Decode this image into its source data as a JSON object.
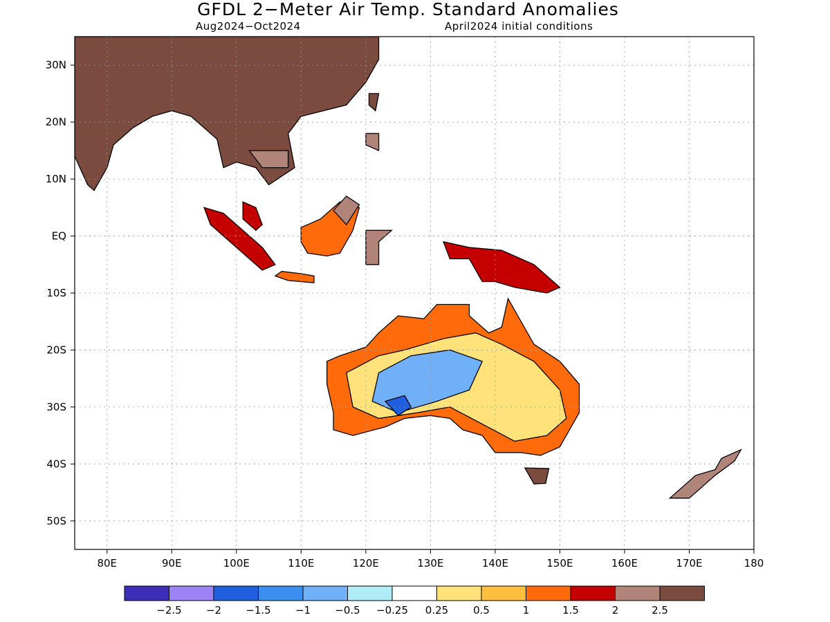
{
  "title": "GFDL 2−Meter Air Temp. Standard Anomalies",
  "subtitle_left": "Aug2024−Oct2024",
  "subtitle_right": "April2024 initial conditions",
  "map": {
    "lon_range": [
      75,
      180
    ],
    "lat_range": [
      -55,
      35
    ],
    "lon_ticks": [
      {
        "value": 80,
        "label": "80E"
      },
      {
        "value": 90,
        "label": "90E"
      },
      {
        "value": 100,
        "label": "100E"
      },
      {
        "value": 110,
        "label": "110E"
      },
      {
        "value": 120,
        "label": "120E"
      },
      {
        "value": 130,
        "label": "130E"
      },
      {
        "value": 140,
        "label": "140E"
      },
      {
        "value": 150,
        "label": "150E"
      },
      {
        "value": 160,
        "label": "160E"
      },
      {
        "value": 170,
        "label": "170E"
      },
      {
        "value": 180,
        "label": "180"
      }
    ],
    "lat_ticks": [
      {
        "value": 30,
        "label": "30N"
      },
      {
        "value": 20,
        "label": "20N"
      },
      {
        "value": 10,
        "label": "10N"
      },
      {
        "value": 0,
        "label": "EQ"
      },
      {
        "value": -10,
        "label": "10S"
      },
      {
        "value": -20,
        "label": "20S"
      },
      {
        "value": -30,
        "label": "30S"
      },
      {
        "value": -40,
        "label": "40S"
      },
      {
        "value": -50,
        "label": "50S"
      }
    ],
    "grid": "dotted",
    "regions": [
      {
        "name": "Asia",
        "level": "2.5",
        "pts": [
          [
            75,
            35
          ],
          [
            122,
            35
          ],
          [
            122,
            31
          ],
          [
            120,
            27
          ],
          [
            117,
            23
          ],
          [
            110,
            21
          ],
          [
            108,
            18
          ],
          [
            109,
            12
          ],
          [
            105,
            9
          ],
          [
            103,
            12
          ],
          [
            100,
            13
          ],
          [
            98,
            12
          ],
          [
            97,
            17
          ],
          [
            93,
            21
          ],
          [
            90,
            22
          ],
          [
            87,
            21
          ],
          [
            84,
            19
          ],
          [
            81,
            16
          ],
          [
            80,
            12
          ],
          [
            78,
            8
          ],
          [
            77,
            9
          ],
          [
            75,
            14
          ]
        ]
      },
      {
        "name": "Mekong",
        "level": "2",
        "pts": [
          [
            102,
            15
          ],
          [
            108,
            15
          ],
          [
            108,
            12
          ],
          [
            104,
            12
          ]
        ]
      },
      {
        "name": "Taiwan",
        "level": "2.5",
        "pts": [
          [
            120.5,
            25
          ],
          [
            122,
            25
          ],
          [
            121.5,
            22
          ],
          [
            120.5,
            23
          ]
        ]
      },
      {
        "name": "Luzon",
        "level": "2",
        "pts": [
          [
            120,
            18
          ],
          [
            122,
            18
          ],
          [
            122,
            15
          ],
          [
            120,
            16
          ]
        ]
      },
      {
        "name": "Sumatra",
        "level": "1.5",
        "pts": [
          [
            95,
            5
          ],
          [
            98,
            4
          ],
          [
            104,
            -2
          ],
          [
            106,
            -5
          ],
          [
            104,
            -6
          ],
          [
            100,
            -2
          ],
          [
            96,
            2
          ]
        ]
      },
      {
        "name": "Malay Peninsula",
        "level": "1.5",
        "pts": [
          [
            101,
            6
          ],
          [
            103,
            5
          ],
          [
            104,
            2
          ],
          [
            103,
            1
          ],
          [
            101,
            3
          ]
        ]
      },
      {
        "name": "Java",
        "level": "1",
        "pts": [
          [
            107,
            -6.2
          ],
          [
            110,
            -6.6
          ],
          [
            112,
            -7
          ],
          [
            112,
            -8.2
          ],
          [
            108,
            -7.8
          ],
          [
            106,
            -7
          ]
        ]
      },
      {
        "name": "Borneo",
        "level": "1",
        "pts": [
          [
            110,
            1.5
          ],
          [
            113,
            3
          ],
          [
            116,
            6
          ],
          [
            119,
            5
          ],
          [
            118,
            1
          ],
          [
            116,
            -3
          ],
          [
            114,
            -3.5
          ],
          [
            111,
            -3
          ],
          [
            110,
            -1
          ]
        ]
      },
      {
        "name": "Borneo North",
        "level": "2",
        "pts": [
          [
            115,
            4.5
          ],
          [
            117,
            7
          ],
          [
            119,
            5.5
          ],
          [
            117,
            2
          ]
        ]
      },
      {
        "name": "Sulawesi",
        "level": "2",
        "pts": [
          [
            120,
            1
          ],
          [
            124,
            1
          ],
          [
            122,
            -1
          ],
          [
            122,
            -5
          ],
          [
            120,
            -5
          ]
        ]
      },
      {
        "name": "New Guinea",
        "level": "1.5",
        "pts": [
          [
            132,
            -1
          ],
          [
            136,
            -2
          ],
          [
            141,
            -2.5
          ],
          [
            146,
            -5
          ],
          [
            150,
            -9
          ],
          [
            148,
            -10
          ],
          [
            143,
            -9
          ],
          [
            140,
            -8
          ],
          [
            138,
            -8
          ],
          [
            136,
            -4
          ],
          [
            133,
            -4
          ]
        ]
      },
      {
        "name": "Australia",
        "level": "1",
        "pts": [
          [
            114,
            -22
          ],
          [
            116,
            -21
          ],
          [
            120,
            -19.5
          ],
          [
            122,
            -17
          ],
          [
            125,
            -14
          ],
          [
            129,
            -14.5
          ],
          [
            131,
            -12
          ],
          [
            136,
            -12
          ],
          [
            136,
            -14
          ],
          [
            139,
            -17
          ],
          [
            141,
            -16
          ],
          [
            142,
            -11
          ],
          [
            144,
            -15
          ],
          [
            146,
            -19
          ],
          [
            150,
            -22
          ],
          [
            153,
            -26
          ],
          [
            153,
            -31
          ],
          [
            152,
            -33
          ],
          [
            150,
            -37
          ],
          [
            147,
            -38.5
          ],
          [
            144,
            -38
          ],
          [
            140,
            -38
          ],
          [
            138,
            -35
          ],
          [
            135,
            -34
          ],
          [
            133,
            -32
          ],
          [
            130,
            -31.5
          ],
          [
            126,
            -32
          ],
          [
            123,
            -33.5
          ],
          [
            118,
            -35
          ],
          [
            115,
            -34
          ],
          [
            115,
            -31
          ],
          [
            114,
            -26
          ]
        ]
      },
      {
        "name": "Australia interior",
        "level": "0.25",
        "pts": [
          [
            117,
            -24
          ],
          [
            122,
            -21
          ],
          [
            126,
            -20
          ],
          [
            132,
            -18
          ],
          [
            137,
            -17
          ],
          [
            141,
            -19
          ],
          [
            146,
            -22
          ],
          [
            150,
            -27
          ],
          [
            151,
            -32
          ],
          [
            148,
            -35
          ],
          [
            143,
            -36
          ],
          [
            138,
            -33
          ],
          [
            133,
            -30
          ],
          [
            128,
            -31
          ],
          [
            122,
            -32
          ],
          [
            118,
            -30
          ]
        ]
      },
      {
        "name": "Australia cool",
        "level": "-0.5",
        "pts": [
          [
            122,
            -24
          ],
          [
            127,
            -21
          ],
          [
            133,
            -20
          ],
          [
            138,
            -22
          ],
          [
            136,
            -27
          ],
          [
            131,
            -29
          ],
          [
            125,
            -31
          ],
          [
            121,
            -29
          ]
        ]
      },
      {
        "name": "Australia cold",
        "level": "-1.5",
        "pts": [
          [
            123,
            -29
          ],
          [
            126,
            -28
          ],
          [
            127,
            -30
          ],
          [
            125,
            -31.5
          ]
        ]
      },
      {
        "name": "Tasmania",
        "level": "2.5",
        "pts": [
          [
            144.6,
            -40.7
          ],
          [
            148.3,
            -40.8
          ],
          [
            147.8,
            -43.4
          ],
          [
            146,
            -43.5
          ]
        ]
      },
      {
        "name": "New Zealand",
        "level": "2",
        "pts": [
          [
            167,
            -46
          ],
          [
            171,
            -42
          ],
          [
            174,
            -41
          ],
          [
            175,
            -39
          ],
          [
            178,
            -37.5
          ],
          [
            177,
            -39.5
          ],
          [
            174,
            -42
          ],
          [
            170,
            -46
          ]
        ]
      }
    ]
  },
  "colorbar": {
    "colors": [
      "#3d2db8",
      "#9b82f5",
      "#2060e0",
      "#3c8ff0",
      "#6fb0f8",
      "#aeedf8",
      "#ffffff",
      "#ffe27a",
      "#ffbe3c",
      "#ff6a0a",
      "#c40000",
      "#b08478",
      "#7a4b3e"
    ],
    "labels": [
      "−2.5",
      "−2",
      "−1.5",
      "−1",
      "−0.5",
      "−0.25",
      "0.25",
      "0.5",
      "1",
      "1.5",
      "2",
      "2.5"
    ]
  }
}
